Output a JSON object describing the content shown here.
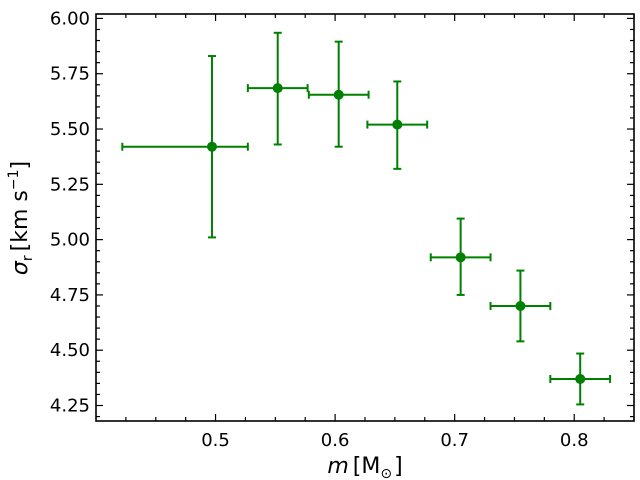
{
  "chart_data": {
    "type": "scatter",
    "xlim": [
      0.4,
      0.85
    ],
    "ylim": [
      4.18,
      6.02
    ],
    "xticks": [
      0.5,
      0.6,
      0.7,
      0.8
    ],
    "xtick_labels": [
      "0.5",
      "0.6",
      "0.7",
      "0.8"
    ],
    "yticks": [
      4.25,
      4.5,
      4.75,
      5.0,
      5.25,
      5.5,
      5.75,
      6.0
    ],
    "ytick_labels": [
      "4.25",
      "4.50",
      "4.75",
      "5.00",
      "5.25",
      "5.50",
      "5.75",
      "6.00"
    ],
    "xlabel": {
      "base": "m",
      "unit": "M",
      "unit_sub": "⊙"
    },
    "ylabel": {
      "base": "σ",
      "sub": "r",
      "unit": "km s",
      "unit_sup": "−1"
    },
    "color": "#008000",
    "points": [
      {
        "x": 0.497,
        "y": 5.42,
        "xerr": [
          0.075,
          0.03
        ],
        "yerr": [
          0.41,
          0.41
        ]
      },
      {
        "x": 0.552,
        "y": 5.685,
        "xerr": [
          0.025,
          0.025
        ],
        "yerr": [
          0.255,
          0.25
        ]
      },
      {
        "x": 0.603,
        "y": 5.655,
        "xerr": [
          0.025,
          0.025
        ],
        "yerr": [
          0.235,
          0.24
        ]
      },
      {
        "x": 0.652,
        "y": 5.52,
        "xerr": [
          0.025,
          0.025
        ],
        "yerr": [
          0.2,
          0.195
        ]
      },
      {
        "x": 0.705,
        "y": 4.92,
        "xerr": [
          0.025,
          0.025
        ],
        "yerr": [
          0.17,
          0.175
        ]
      },
      {
        "x": 0.755,
        "y": 4.7,
        "xerr": [
          0.025,
          0.025
        ],
        "yerr": [
          0.16,
          0.16
        ]
      },
      {
        "x": 0.805,
        "y": 4.37,
        "xerr": [
          0.025,
          0.025
        ],
        "yerr": [
          0.115,
          0.115
        ]
      }
    ]
  }
}
